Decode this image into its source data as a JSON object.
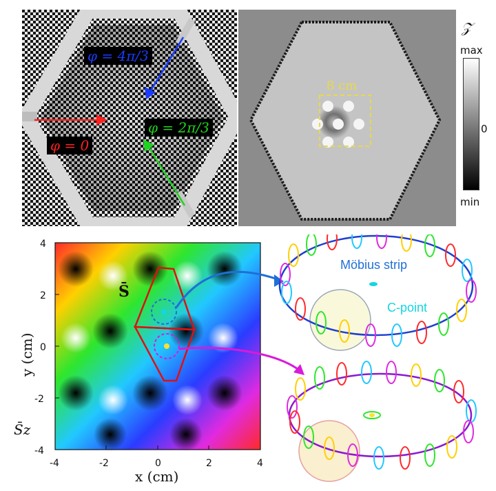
{
  "photo": {
    "phase_labels": [
      {
        "text": "φ = 4π/3",
        "color": "#1a3cff"
      },
      {
        "text": "φ = 2π/3",
        "color": "#21d321"
      },
      {
        "text": "φ = 0",
        "color": "#ff2020"
      }
    ]
  },
  "wave": {
    "scale_label": "8 cm",
    "colorbar": {
      "title": "𝒵",
      "max": "max",
      "zero": "0",
      "min": "min"
    }
  },
  "map": {
    "x_label": "x (cm)",
    "y_label": "y (cm)",
    "x_ticks": [
      "-4",
      "-2",
      "0",
      "2",
      "4"
    ],
    "y_ticks": [
      "4",
      "2",
      "0",
      "-2",
      "-4"
    ],
    "s_label": "S̄",
    "sz_label": "S̄z"
  },
  "annotations": {
    "mobius": "Möbius strip",
    "cpoint": "C-point"
  },
  "colors": {
    "mobius": "#1f6fd6",
    "cpoint": "#13d6e0",
    "magenta": "#d91ad9",
    "red": "#e01010"
  }
}
